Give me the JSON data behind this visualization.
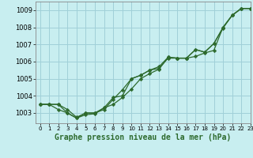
{
  "title": "Graphe pression niveau de la mer (hPa)",
  "bg_color": "#c8eef0",
  "grid_color": "#a0d0d8",
  "line_color": "#2d6a2d",
  "xlim": [
    -0.5,
    23
  ],
  "ylim": [
    1002.4,
    1009.5
  ],
  "yticks": [
    1003,
    1004,
    1005,
    1006,
    1007,
    1008,
    1009
  ],
  "xticks": [
    0,
    1,
    2,
    3,
    4,
    5,
    6,
    7,
    8,
    9,
    10,
    11,
    12,
    13,
    14,
    15,
    16,
    17,
    18,
    19,
    20,
    21,
    22,
    23
  ],
  "series": [
    [
      1003.5,
      1003.5,
      1003.5,
      1003.2,
      1002.75,
      1003.0,
      1003.0,
      1003.3,
      1003.9,
      1004.0,
      1005.0,
      1005.2,
      1005.5,
      1005.6,
      1006.2,
      1006.2,
      1006.2,
      1006.3,
      1006.5,
      1006.65,
      1008.0,
      1008.7,
      1009.1,
      1009.1
    ],
    [
      1003.5,
      1003.5,
      1003.2,
      1003.0,
      1002.7,
      1003.0,
      1003.0,
      1003.2,
      1003.8,
      1004.35,
      1005.0,
      1005.2,
      1005.5,
      1005.7,
      1006.25,
      1006.2,
      1006.2,
      1006.7,
      1006.55,
      1007.05,
      1007.95,
      1008.7,
      1009.1,
      1009.1
    ],
    [
      1003.5,
      1003.5,
      1003.5,
      1003.0,
      1002.7,
      1002.9,
      1002.95,
      1003.3,
      1003.5,
      1003.9,
      1004.4,
      1005.0,
      1005.3,
      1005.55,
      1006.25,
      1006.2,
      1006.2,
      1006.7,
      1006.55,
      1007.05,
      1008.0,
      1008.7,
      1009.1,
      1009.1
    ]
  ],
  "xlabel_fontsize": 7,
  "ytick_fontsize": 6,
  "xtick_fontsize": 5
}
